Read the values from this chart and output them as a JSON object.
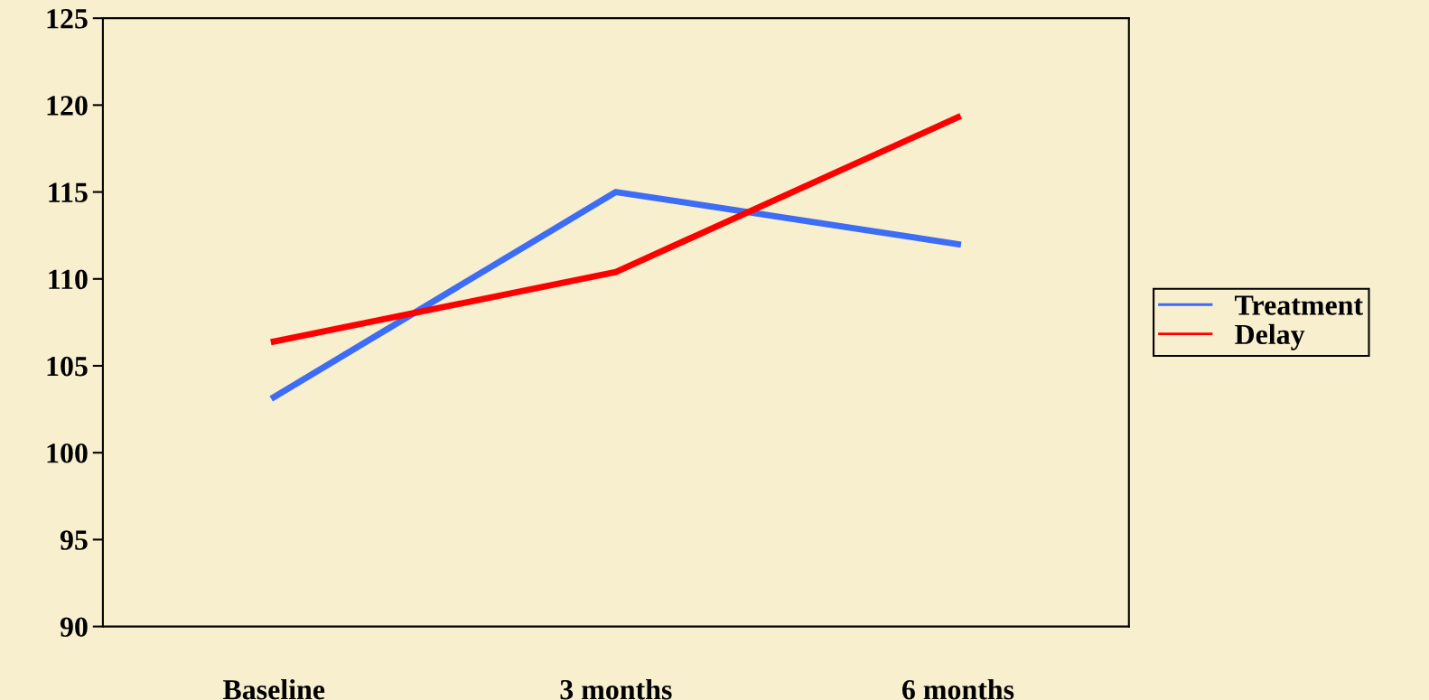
{
  "chart_data": {
    "type": "line",
    "categories": [
      "Baseline",
      "3 months",
      "6 months"
    ],
    "series": [
      {
        "name": "Treatment",
        "color": "#3d6cf5",
        "values": [
          103.2,
          115.0,
          112.0
        ]
      },
      {
        "name": "Delay",
        "color": "#ff0000",
        "values": [
          106.4,
          110.4,
          119.3
        ]
      }
    ],
    "ylim": [
      90,
      125
    ],
    "yticks": [
      90,
      95,
      100,
      105,
      110,
      115,
      120,
      125
    ],
    "grid": false,
    "legend": "right",
    "marker": "none",
    "line_style": "solid"
  }
}
